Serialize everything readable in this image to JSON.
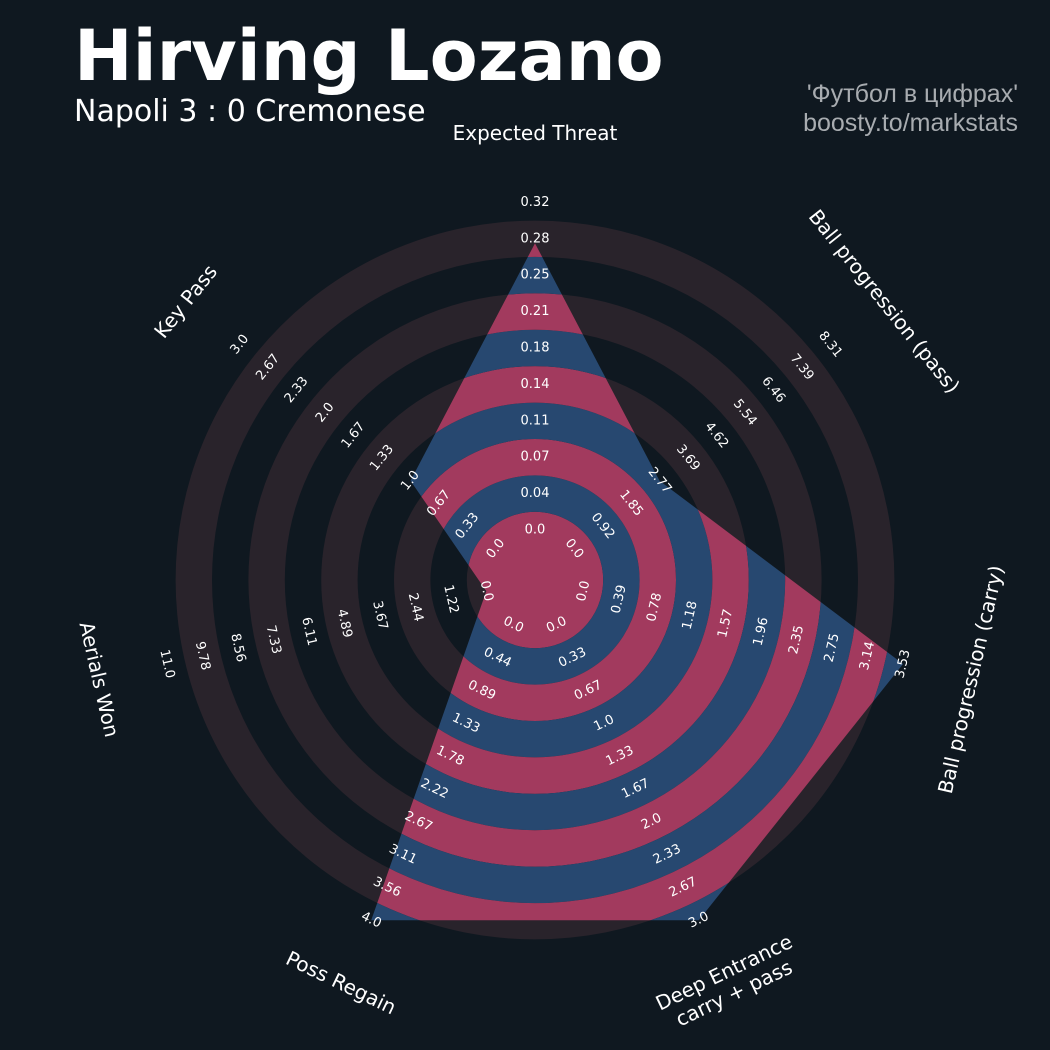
{
  "header": {
    "title": "Hirving Lozano",
    "subtitle": "Napoli 3 : 0 Cremonese",
    "credit_line1": "'Футбол в цифрах'",
    "credit_line2": "boosty.to/markstats"
  },
  "colors": {
    "background": "#0f1820",
    "range_ring": "#29232b",
    "value_blue": "#274870",
    "value_pink": "#a23a5e",
    "text_light": "#ffffff",
    "credit_text": "#a8acb0"
  },
  "chart_data": {
    "type": "radar",
    "grid": false,
    "legend": "none",
    "params": [
      {
        "name": "Expected Threat",
        "value": 0.28,
        "ticks": [
          "0.0",
          "0.04",
          "0.07",
          "0.11",
          "0.14",
          "0.18",
          "0.21",
          "0.25",
          "0.28",
          "0.32"
        ]
      },
      {
        "name": "Ball progression (pass)",
        "value": 2.77,
        "ticks": [
          "0.0",
          "0.92",
          "1.85",
          "2.77",
          "3.69",
          "4.62",
          "5.54",
          "6.46",
          "7.39",
          "8.31"
        ]
      },
      {
        "name": "Ball progression (carry)",
        "value": 3.53,
        "ticks": [
          "0.0",
          "0.39",
          "0.78",
          "1.18",
          "1.57",
          "1.96",
          "2.35",
          "2.75",
          "3.14",
          "3.53"
        ]
      },
      {
        "name": "Deep Entrance\ncarry + pass",
        "value": 3.0,
        "ticks": [
          "0.0",
          "0.33",
          "0.67",
          "1.0",
          "1.33",
          "1.67",
          "2.0",
          "2.33",
          "2.67",
          "3.0"
        ]
      },
      {
        "name": "Poss Regain",
        "value": 4.0,
        "ticks": [
          "0.0",
          "0.44",
          "0.89",
          "1.33",
          "1.78",
          "2.22",
          "2.67",
          "3.11",
          "3.56",
          "4.0"
        ]
      },
      {
        "name": "Aerials Won",
        "value": 0.0,
        "ticks": [
          "0.0",
          "1.22",
          "2.44",
          "3.67",
          "4.89",
          "6.11",
          "7.33",
          "8.56",
          "9.78",
          "11.0"
        ]
      },
      {
        "name": "Key Pass",
        "value": 1.0,
        "ticks": [
          "0.0",
          "0.33",
          "0.67",
          "1.0",
          "1.33",
          "1.67",
          "2.0",
          "2.33",
          "2.67",
          "3.0"
        ]
      }
    ]
  }
}
